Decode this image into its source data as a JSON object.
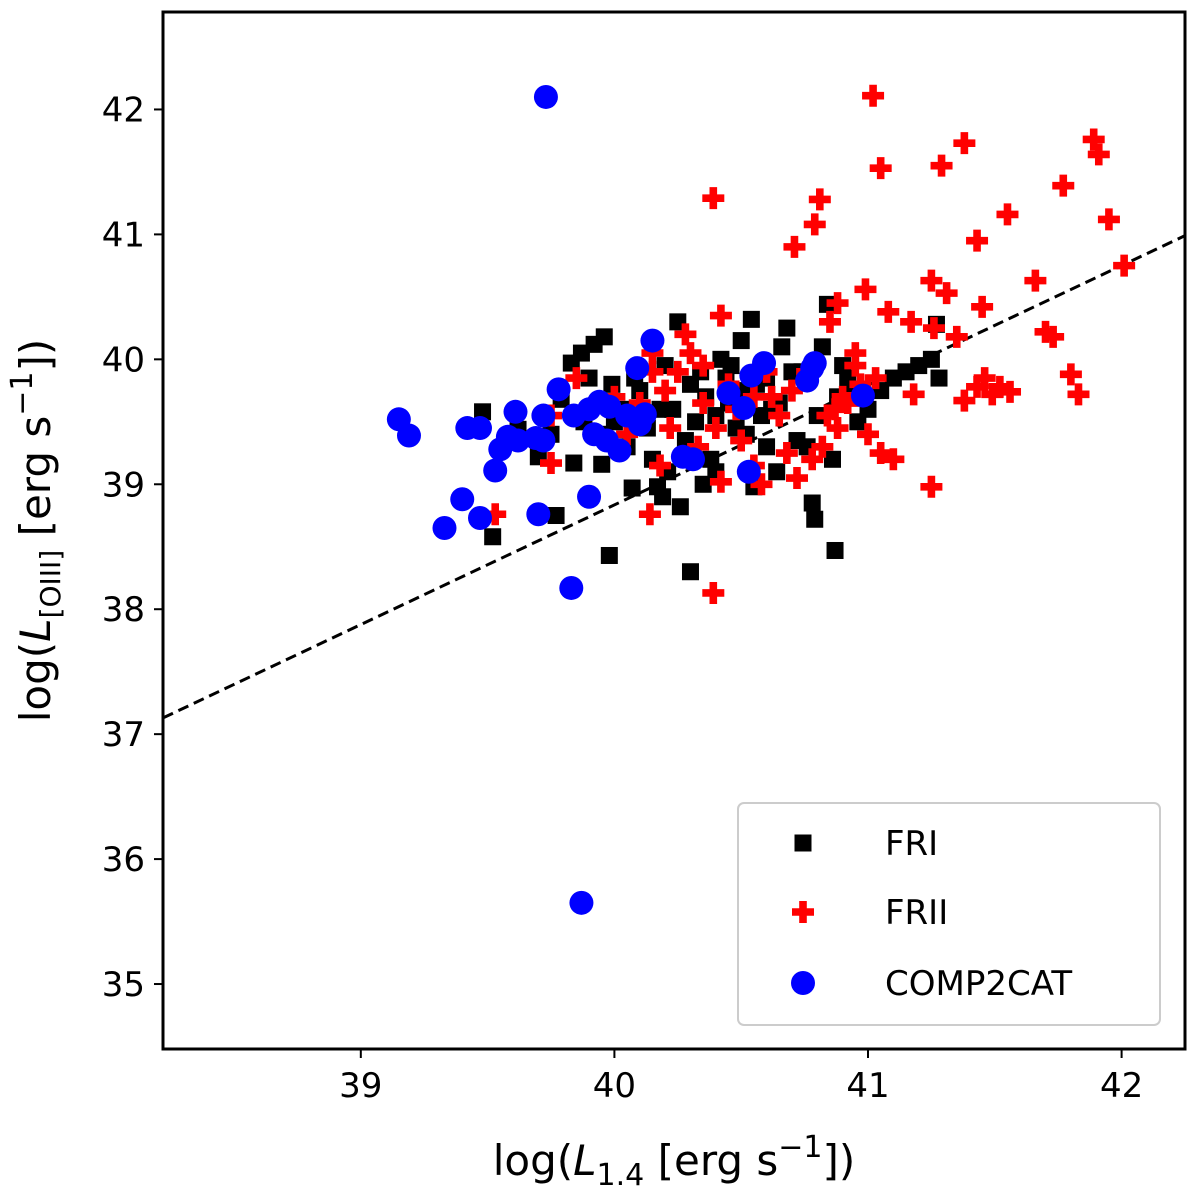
{
  "chart_data": {
    "type": "scatter",
    "title": "",
    "xlabel": "log(L_1.4 [erg s^-1])",
    "ylabel": "log(L_[OIII] [erg s^-1])",
    "x_axis_parts": {
      "pre": "log(",
      "var": "L",
      "sub": "1.4",
      "mid": " [erg s",
      "sup": "−1",
      "post": "])"
    },
    "y_axis_parts": {
      "pre": "log(",
      "var": "L",
      "sub": "[OIII]",
      "mid": " [erg s",
      "sup": "−1",
      "post": "])"
    },
    "xlim": [
      38.22,
      42.25
    ],
    "ylim": [
      34.48,
      42.78
    ],
    "xticks": [
      39,
      40,
      41,
      42
    ],
    "yticks": [
      35,
      36,
      37,
      38,
      39,
      40,
      41,
      42
    ],
    "grid": false,
    "legend_position": "lower-right",
    "fit_line": {
      "style": "dashed",
      "color": "#000000",
      "x": [
        38.22,
        42.25
      ],
      "y": [
        37.13,
        40.99
      ]
    },
    "series": [
      {
        "name": "FRI",
        "marker": "square",
        "color": "#000000",
        "points": [
          [
            39.52,
            38.58
          ],
          [
            39.77,
            38.75
          ],
          [
            39.95,
            39.16
          ],
          [
            39.84,
            39.17
          ],
          [
            39.48,
            39.58
          ],
          [
            39.62,
            39.44
          ],
          [
            39.7,
            39.22
          ],
          [
            39.75,
            39.4
          ],
          [
            39.79,
            39.68
          ],
          [
            39.83,
            39.97
          ],
          [
            39.87,
            40.05
          ],
          [
            39.92,
            40.12
          ],
          [
            39.96,
            40.18
          ],
          [
            39.88,
            39.5
          ],
          [
            39.95,
            39.4
          ],
          [
            39.99,
            39.8
          ],
          [
            40.03,
            39.6
          ],
          [
            40.05,
            39.3
          ],
          [
            40.07,
            38.97
          ],
          [
            39.98,
            38.43
          ],
          [
            40.1,
            39.75
          ],
          [
            40.13,
            39.45
          ],
          [
            40.15,
            39.2
          ],
          [
            40.17,
            38.98
          ],
          [
            40.19,
            38.9
          ],
          [
            40.21,
            39.1
          ],
          [
            40.23,
            39.6
          ],
          [
            40.26,
            38.82
          ],
          [
            40.28,
            39.35
          ],
          [
            40.3,
            38.3
          ],
          [
            40.32,
            39.5
          ],
          [
            40.34,
            39.9
          ],
          [
            40.36,
            39.7
          ],
          [
            40.38,
            39.2
          ],
          [
            40.4,
            39.1
          ],
          [
            40.42,
            40.0
          ],
          [
            40.44,
            39.85
          ],
          [
            40.46,
            39.95
          ],
          [
            40.48,
            39.45
          ],
          [
            40.5,
            40.15
          ],
          [
            40.52,
            39.4
          ],
          [
            40.54,
            40.32
          ],
          [
            40.56,
            39.8
          ],
          [
            40.58,
            39.55
          ],
          [
            40.6,
            39.3
          ],
          [
            40.62,
            39.6
          ],
          [
            40.64,
            39.1
          ],
          [
            40.66,
            40.1
          ],
          [
            40.68,
            40.25
          ],
          [
            40.7,
            39.9
          ],
          [
            40.72,
            39.35
          ],
          [
            40.74,
            39.9
          ],
          [
            40.76,
            39.3
          ],
          [
            40.78,
            38.85
          ],
          [
            40.79,
            38.72
          ],
          [
            40.8,
            39.55
          ],
          [
            40.82,
            40.1
          ],
          [
            40.84,
            40.44
          ],
          [
            40.86,
            39.2
          ],
          [
            40.87,
            38.47
          ],
          [
            40.88,
            39.7
          ],
          [
            40.9,
            39.95
          ],
          [
            40.92,
            39.85
          ],
          [
            40.94,
            39.75
          ],
          [
            40.96,
            39.5
          ],
          [
            41.0,
            39.6
          ],
          [
            41.05,
            39.75
          ],
          [
            41.1,
            39.85
          ],
          [
            41.15,
            39.9
          ],
          [
            41.2,
            39.95
          ],
          [
            41.25,
            40.0
          ],
          [
            41.27,
            40.28
          ],
          [
            41.28,
            39.85
          ],
          [
            40.25,
            40.3
          ],
          [
            40.2,
            39.95
          ],
          [
            40.4,
            39.55
          ],
          [
            40.35,
            39.0
          ],
          [
            40.5,
            39.75
          ],
          [
            40.6,
            39.85
          ],
          [
            40.65,
            39.65
          ],
          [
            39.9,
            39.85
          ],
          [
            40.0,
            39.5
          ],
          [
            40.08,
            39.85
          ],
          [
            40.18,
            39.6
          ],
          [
            40.3,
            39.8
          ],
          [
            40.45,
            39.65
          ],
          [
            40.55,
            38.98
          ]
        ]
      },
      {
        "name": "FRII",
        "marker": "plus",
        "color": "#ff0000",
        "points": [
          [
            41.02,
            42.11
          ],
          [
            41.05,
            41.53
          ],
          [
            41.89,
            41.76
          ],
          [
            41.91,
            41.64
          ],
          [
            41.38,
            41.73
          ],
          [
            41.29,
            41.55
          ],
          [
            40.39,
            41.29
          ],
          [
            40.81,
            41.28
          ],
          [
            41.77,
            41.39
          ],
          [
            41.55,
            41.16
          ],
          [
            41.95,
            41.12
          ],
          [
            40.79,
            41.08
          ],
          [
            40.71,
            40.9
          ],
          [
            41.43,
            40.95
          ],
          [
            42.01,
            40.75
          ],
          [
            41.25,
            40.63
          ],
          [
            41.66,
            40.63
          ],
          [
            40.99,
            40.56
          ],
          [
            41.31,
            40.53
          ],
          [
            40.88,
            40.45
          ],
          [
            41.08,
            40.38
          ],
          [
            41.17,
            40.3
          ],
          [
            41.26,
            40.25
          ],
          [
            41.45,
            40.42
          ],
          [
            41.7,
            40.22
          ],
          [
            41.73,
            40.18
          ],
          [
            41.35,
            40.18
          ],
          [
            40.85,
            40.3
          ],
          [
            40.42,
            40.35
          ],
          [
            40.28,
            40.2
          ],
          [
            40.15,
            40.05
          ],
          [
            41.8,
            39.88
          ],
          [
            41.83,
            39.72
          ],
          [
            41.38,
            39.67
          ],
          [
            41.43,
            39.78
          ],
          [
            41.46,
            39.85
          ],
          [
            41.52,
            39.78
          ],
          [
            41.18,
            39.72
          ],
          [
            40.95,
            39.95
          ],
          [
            40.87,
            39.6
          ],
          [
            41.0,
            39.4
          ],
          [
            41.05,
            39.25
          ],
          [
            40.97,
            39.8
          ],
          [
            41.1,
            39.2
          ],
          [
            41.25,
            38.98
          ],
          [
            40.39,
            38.13
          ],
          [
            40.14,
            38.76
          ],
          [
            39.53,
            38.76
          ],
          [
            39.75,
            39.17
          ],
          [
            39.75,
            39.55
          ],
          [
            39.85,
            39.85
          ],
          [
            39.9,
            39.6
          ],
          [
            40.0,
            39.7
          ],
          [
            40.05,
            39.4
          ],
          [
            40.1,
            39.55
          ],
          [
            40.2,
            39.75
          ],
          [
            40.25,
            39.9
          ],
          [
            40.3,
            40.05
          ],
          [
            40.35,
            39.65
          ],
          [
            40.4,
            39.45
          ],
          [
            40.45,
            39.8
          ],
          [
            40.5,
            39.35
          ],
          [
            40.55,
            39.15
          ],
          [
            40.6,
            39.9
          ],
          [
            40.65,
            39.55
          ],
          [
            40.7,
            39.75
          ],
          [
            40.72,
            39.05
          ],
          [
            40.78,
            39.2
          ],
          [
            40.82,
            39.3
          ],
          [
            40.88,
            39.45
          ],
          [
            40.92,
            39.65
          ],
          [
            40.95,
            40.05
          ],
          [
            41.03,
            39.85
          ],
          [
            40.58,
            39.0
          ],
          [
            40.42,
            39.02
          ],
          [
            40.33,
            39.3
          ],
          [
            40.18,
            39.15
          ],
          [
            40.1,
            39.65
          ],
          [
            40.22,
            39.45
          ],
          [
            40.48,
            39.6
          ],
          [
            40.62,
            39.7
          ],
          [
            40.68,
            39.25
          ],
          [
            40.76,
            39.9
          ],
          [
            40.84,
            39.55
          ],
          [
            40.9,
            39.7
          ],
          [
            40.15,
            39.9
          ],
          [
            40.35,
            39.95
          ],
          [
            40.55,
            39.7
          ],
          [
            41.49,
            39.72
          ],
          [
            41.56,
            39.74
          ]
        ]
      },
      {
        "name": "COMP2CAT",
        "marker": "circle",
        "color": "#0000ff",
        "points": [
          [
            39.73,
            42.1
          ],
          [
            39.15,
            39.52
          ],
          [
            39.19,
            39.39
          ],
          [
            39.42,
            39.45
          ],
          [
            39.47,
            39.45
          ],
          [
            39.61,
            39.58
          ],
          [
            39.58,
            39.38
          ],
          [
            39.55,
            39.28
          ],
          [
            39.62,
            39.35
          ],
          [
            39.69,
            39.37
          ],
          [
            39.72,
            39.35
          ],
          [
            39.72,
            39.55
          ],
          [
            39.78,
            39.76
          ],
          [
            39.84,
            39.55
          ],
          [
            39.9,
            39.6
          ],
          [
            39.94,
            39.66
          ],
          [
            39.98,
            39.62
          ],
          [
            39.92,
            39.4
          ],
          [
            39.97,
            39.35
          ],
          [
            40.02,
            39.27
          ],
          [
            40.05,
            39.55
          ],
          [
            39.53,
            39.11
          ],
          [
            39.4,
            38.88
          ],
          [
            39.33,
            38.65
          ],
          [
            39.47,
            38.73
          ],
          [
            39.7,
            38.76
          ],
          [
            39.9,
            38.9
          ],
          [
            39.83,
            38.17
          ],
          [
            39.87,
            35.65
          ],
          [
            40.09,
            39.93
          ],
          [
            40.15,
            40.15
          ],
          [
            40.12,
            39.56
          ],
          [
            40.1,
            39.48
          ],
          [
            40.27,
            39.22
          ],
          [
            40.31,
            39.2
          ],
          [
            40.45,
            39.73
          ],
          [
            40.51,
            39.61
          ],
          [
            40.53,
            39.1
          ],
          [
            40.54,
            39.87
          ],
          [
            40.59,
            39.97
          ],
          [
            40.76,
            39.83
          ],
          [
            40.78,
            39.93
          ],
          [
            40.79,
            39.97
          ],
          [
            40.98,
            39.71
          ]
        ]
      }
    ]
  }
}
